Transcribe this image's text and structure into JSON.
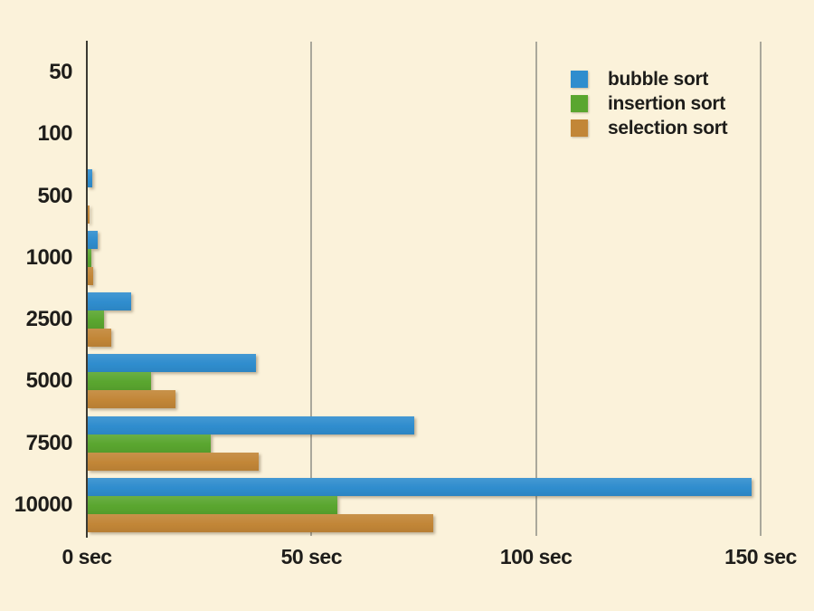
{
  "colors": {
    "background": "#fbf2da",
    "gridline": "#aaa89b",
    "axis": "#3b3a33",
    "text": "#1e1d1a",
    "bubble": "#2f8dce",
    "insertion": "#5aa62f",
    "selection": "#c28637"
  },
  "chart_data": {
    "type": "bar",
    "orientation": "horizontal",
    "title": "",
    "categories": [
      "50",
      "100",
      "500",
      "1000",
      "2500",
      "5000",
      "7500",
      "10000"
    ],
    "series": [
      {
        "name": "bubble sort",
        "color": "#2f8dce",
        "values": [
          0,
          0,
          1.1,
          2.2,
          9.7,
          37.4,
          72.6,
          147.8
        ]
      },
      {
        "name": "insertion sort",
        "color": "#5aa62f",
        "values": [
          0,
          0,
          0,
          0.9,
          3.7,
          14.0,
          27.3,
          55.5
        ]
      },
      {
        "name": "selection sort",
        "color": "#c28637",
        "values": [
          0,
          0,
          0.5,
          1.2,
          5.2,
          19.6,
          38.0,
          77.0
        ]
      }
    ],
    "x_ticks": [
      {
        "value": 0,
        "label": "0 sec"
      },
      {
        "value": 50,
        "label": "50 sec"
      },
      {
        "value": 100,
        "label": "100 sec"
      },
      {
        "value": 150,
        "label": "150 sec"
      }
    ],
    "xlim": [
      0,
      161
    ],
    "grid": true,
    "legend_position": "top-right"
  },
  "legend": {
    "items": [
      {
        "label": "bubble sort",
        "color": "#2f8dce"
      },
      {
        "label": "insertion sort",
        "color": "#5aa62f"
      },
      {
        "label": "selection sort",
        "color": "#c28637"
      }
    ]
  }
}
